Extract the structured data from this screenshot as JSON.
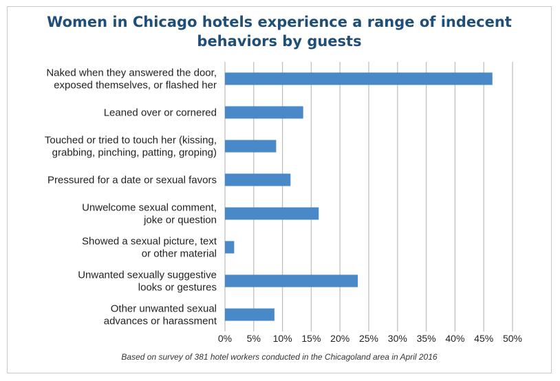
{
  "chart_data": {
    "type": "bar",
    "orientation": "horizontal",
    "title": "Women in Chicago hotels experience a range of indecent\nbehaviors by guests",
    "categories": [
      [
        "Naked when they answered the door,",
        "exposed themselves, or flashed her"
      ],
      [
        "Leaned over or cornered"
      ],
      [
        "Touched or tried to touch her (kissing,",
        "grabbing, pinching, patting, groping)"
      ],
      [
        "Pressured for a date or sexual favors"
      ],
      [
        "Unwelcome sexual comment,",
        "joke or question"
      ],
      [
        "Showed a sexual picture, text",
        "or other material"
      ],
      [
        "Unwanted sexually suggestive",
        "looks or gestures"
      ],
      [
        "Other unwanted sexual",
        "advances or harassment"
      ]
    ],
    "values": [
      46.5,
      13.6,
      8.9,
      11.4,
      16.3,
      1.6,
      23.1,
      8.6
    ],
    "xlim": [
      0,
      50
    ],
    "xticks": [
      "0%",
      "5%",
      "10%",
      "15%",
      "20%",
      "25%",
      "30%",
      "35%",
      "40%",
      "45%",
      "50%"
    ],
    "grid": true,
    "bar_color": "#4a89c8",
    "grid_color": "#c0c0c0",
    "note": "Based on survey of 381 hotel workers conducted in the Chicagoland area in April 2016"
  }
}
